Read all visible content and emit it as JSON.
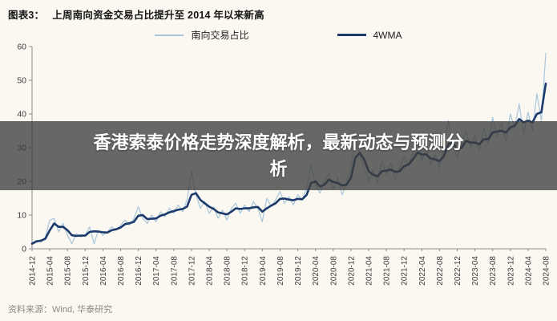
{
  "header": {
    "tag": "图表3：",
    "title": "上周南向资金交易占比提升至 2014 年以来新高"
  },
  "overlay": {
    "text": "香港索泰价格走势深度解析，最新动态与预测分析"
  },
  "footer": {
    "source": "资料来源：Wind, 华泰研究"
  },
  "chart_data": {
    "type": "line",
    "title": "上周南向资金交易占比提升至 2014 年以来新高",
    "ylabel": "",
    "xlabel": "",
    "ylim": [
      0,
      60
    ],
    "yticks": [
      0,
      10,
      20,
      30,
      40,
      50,
      60
    ],
    "grid": false,
    "legend_position": "top",
    "x_start": "2014-12",
    "x_end": "2024-08",
    "x_tick_labels": [
      "2014-12",
      "2015-04",
      "2015-08",
      "2015-12",
      "2016-04",
      "2016-08",
      "2016-12",
      "2017-04",
      "2017-08",
      "2017-12",
      "2018-04",
      "2018-08",
      "2018-12",
      "2019-04",
      "2019-08",
      "2019-12",
      "2020-04",
      "2020-08",
      "2020-12",
      "2021-04",
      "2021-08",
      "2021-12",
      "2022-04",
      "2022-08",
      "2022-12",
      "2023-04",
      "2023-08",
      "2023-12",
      "2024-04",
      "2024-08"
    ],
    "series": [
      {
        "name": "南向交易占比",
        "color": "#a7c6dc",
        "width": 1.2,
        "values": [
          1.5,
          2.5,
          2.0,
          3.5,
          8.5,
          9.0,
          5.0,
          7.5,
          4.0,
          1.5,
          4.5,
          3.5,
          4.0,
          6.5,
          1.5,
          5.5,
          4.0,
          5.0,
          6.5,
          5.5,
          7.0,
          8.5,
          7.0,
          9.0,
          12.5,
          9.0,
          7.5,
          10.0,
          8.0,
          11.0,
          9.5,
          12.0,
          10.5,
          13.0,
          11.0,
          14.5,
          23.0,
          16.0,
          12.0,
          14.0,
          10.5,
          12.5,
          9.0,
          11.5,
          8.5,
          12.0,
          13.5,
          10.5,
          13.0,
          11.0,
          14.0,
          12.0,
          8.0,
          15.0,
          12.5,
          14.5,
          17.0,
          13.5,
          15.5,
          13.0,
          16.0,
          14.5,
          18.0,
          25.0,
          19.0,
          16.5,
          20.0,
          22.5,
          17.5,
          21.0,
          16.0,
          19.5,
          23.5,
          34.0,
          28.0,
          24.0,
          20.0,
          23.5,
          19.5,
          26.0,
          22.0,
          25.5,
          20.5,
          24.0,
          27.5,
          24.5,
          28.5,
          33.0,
          26.0,
          30.0,
          25.0,
          28.0,
          24.0,
          31.0,
          38.0,
          30.5,
          27.0,
          31.5,
          35.0,
          30.0,
          33.5,
          29.0,
          36.0,
          31.0,
          39.0,
          33.0,
          37.5,
          32.0,
          40.0,
          36.0,
          43.0,
          34.0,
          40.5,
          35.0,
          46.0,
          38.0,
          58.0
        ]
      },
      {
        "name": "4WMA",
        "color": "#1b3a6b",
        "width": 2.6,
        "values": [
          1.5,
          2.2,
          2.4,
          3.0,
          5.5,
          7.5,
          6.5,
          6.5,
          5.5,
          4.0,
          3.8,
          3.9,
          3.9,
          5.0,
          5.2,
          5.1,
          4.9,
          4.8,
          5.5,
          5.8,
          6.3,
          7.3,
          7.6,
          8.0,
          9.8,
          10.0,
          8.8,
          8.9,
          9.0,
          9.8,
          10.2,
          10.8,
          11.2,
          11.6,
          11.8,
          12.5,
          16.0,
          16.5,
          14.5,
          13.5,
          12.5,
          11.8,
          10.8,
          10.5,
          10.2,
          11.0,
          12.0,
          11.8,
          12.0,
          12.0,
          12.3,
          12.4,
          11.0,
          12.0,
          12.8,
          13.5,
          14.8,
          14.9,
          14.6,
          14.4,
          14.8,
          14.7,
          16.0,
          19.5,
          20.0,
          18.5,
          19.0,
          20.5,
          19.8,
          19.5,
          18.8,
          19.0,
          21.0,
          27.0,
          28.5,
          26.5,
          23.0,
          22.0,
          21.5,
          23.0,
          23.2,
          23.5,
          22.8,
          23.0,
          24.5,
          25.0,
          26.5,
          28.5,
          28.0,
          28.0,
          26.8,
          26.5,
          26.0,
          27.5,
          31.0,
          31.5,
          29.5,
          30.0,
          32.0,
          31.5,
          31.5,
          31.0,
          32.5,
          32.5,
          34.5,
          34.8,
          35.0,
          34.5,
          36.0,
          36.5,
          38.5,
          37.5,
          38.0,
          37.5,
          40.0,
          40.5,
          49.0
        ]
      }
    ]
  }
}
